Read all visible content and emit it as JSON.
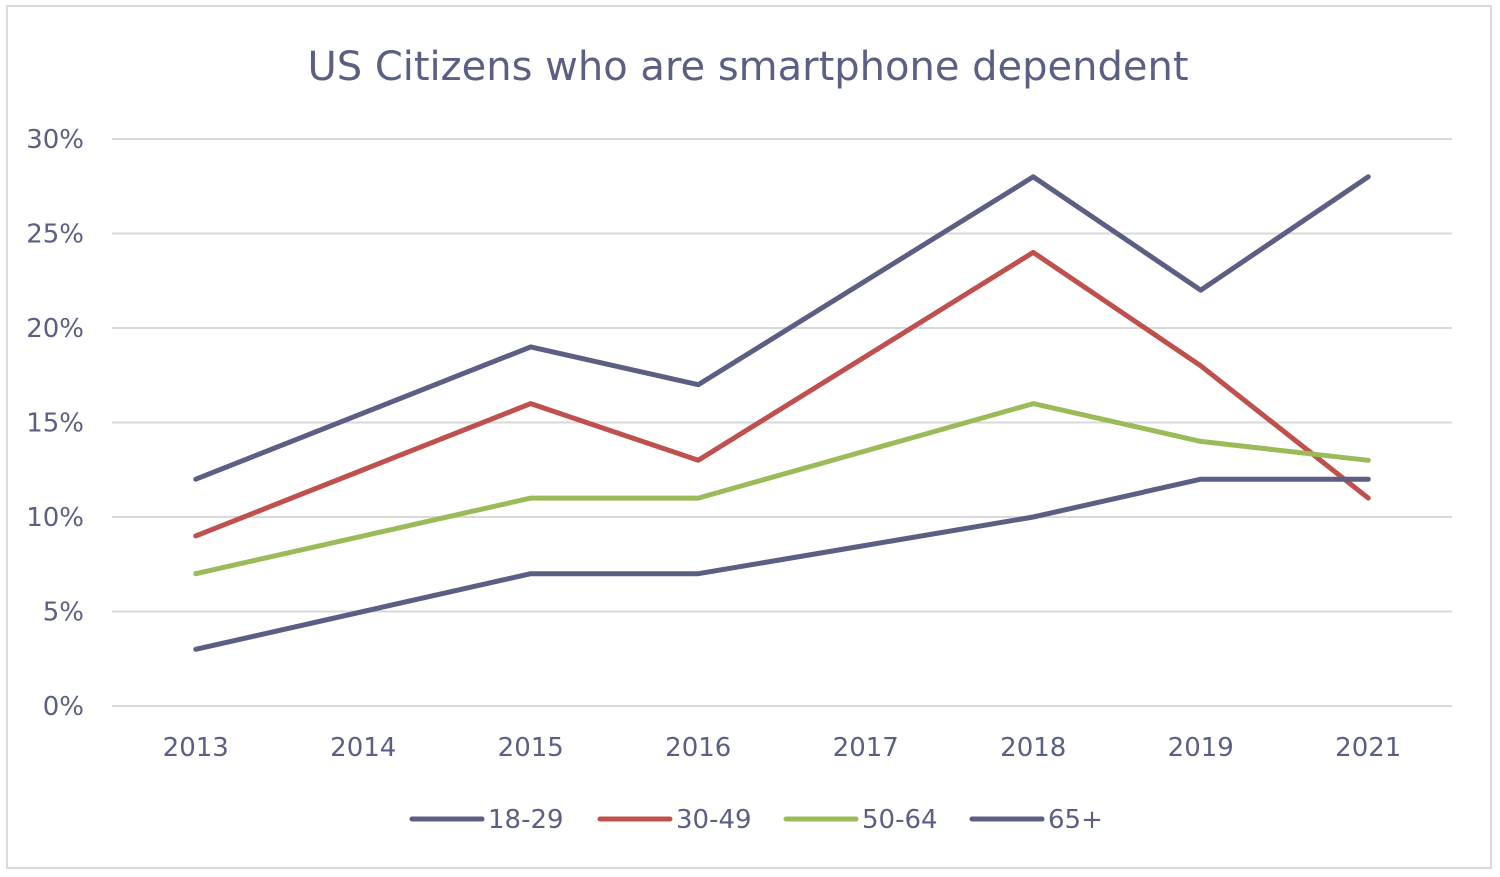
{
  "chart_data": {
    "type": "line",
    "title": "US Citizens who are smartphone dependent",
    "xlabel": "",
    "ylabel": "",
    "categories": [
      "2013",
      "2014",
      "2015",
      "2016",
      "2017",
      "2018",
      "2019",
      "2021"
    ],
    "ylim": [
      0,
      30
    ],
    "yticks": [
      "0%",
      "5%",
      "10%",
      "15%",
      "20%",
      "25%",
      "30%"
    ],
    "ytick_values": [
      0,
      5,
      10,
      15,
      20,
      25,
      30
    ],
    "grid": true,
    "legend": "bottom",
    "series": [
      {
        "name": "18-29",
        "color": "#5a5f83",
        "values": [
          12,
          15.5,
          19,
          17,
          22.5,
          28,
          22,
          28
        ]
      },
      {
        "name": "30-49",
        "color": "#c0504d",
        "values": [
          9,
          12.5,
          16,
          13,
          18.5,
          24,
          18,
          11
        ]
      },
      {
        "name": "50-64",
        "color": "#9bbb59",
        "values": [
          7,
          9,
          11,
          11,
          13.5,
          16,
          14,
          13
        ]
      },
      {
        "name": "65+",
        "color": "#5a5f83",
        "values": [
          3,
          5,
          7,
          7,
          8.5,
          10,
          12,
          12
        ]
      }
    ]
  }
}
